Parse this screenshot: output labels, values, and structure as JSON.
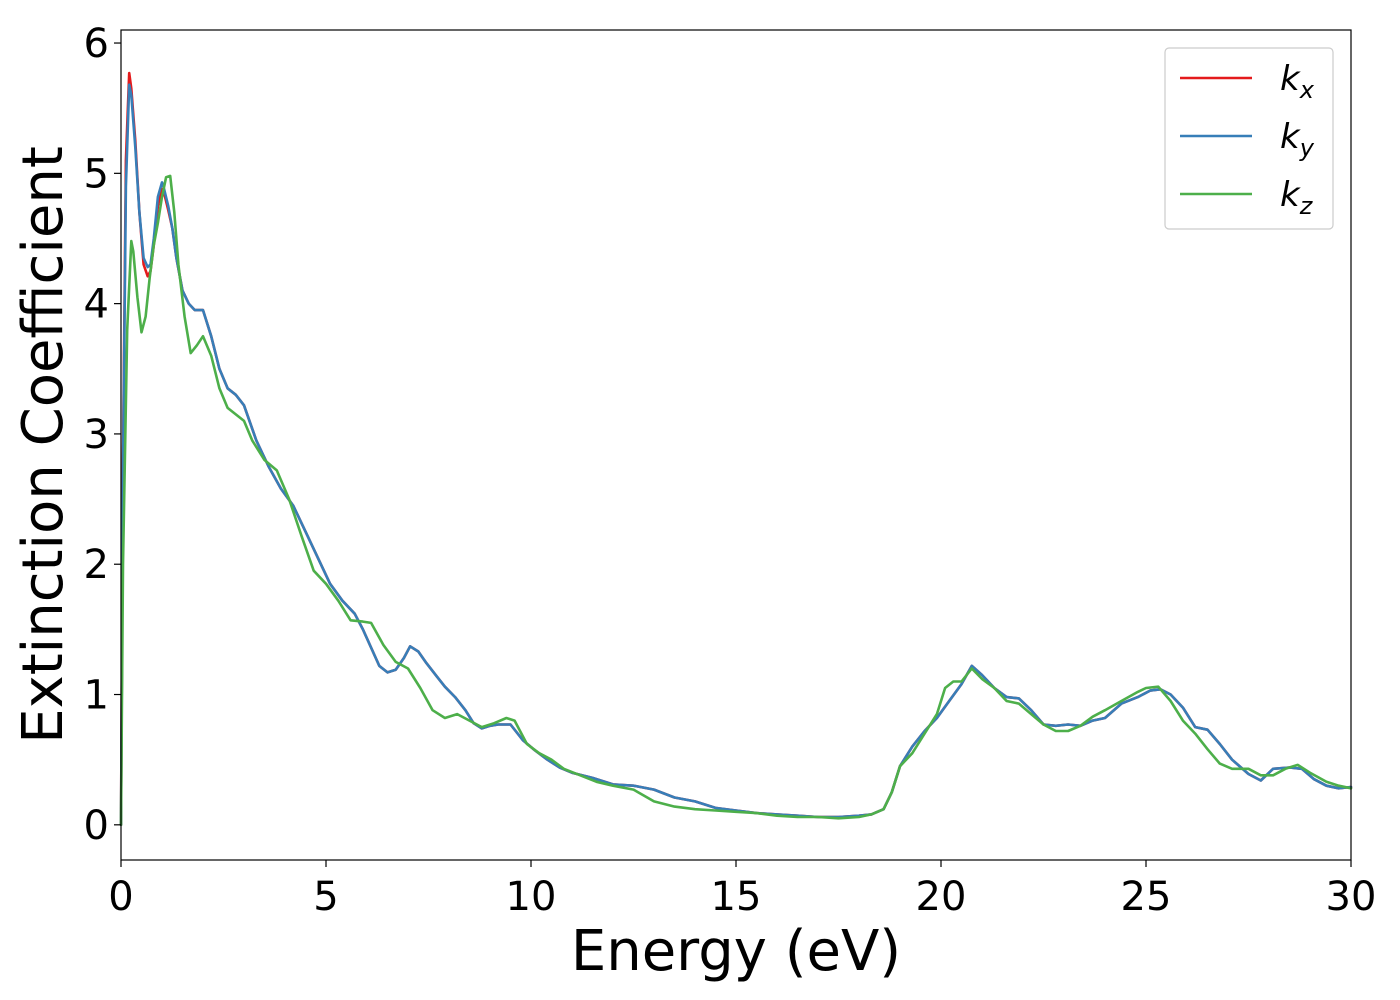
{
  "chart_data": {
    "type": "line",
    "title": "",
    "xlabel": "Energy (eV)",
    "ylabel": "Extinction Coefficient",
    "xlim": [
      0,
      30
    ],
    "ylim": [
      -0.27,
      6.1
    ],
    "xticks": [
      0,
      5,
      10,
      15,
      20,
      25,
      30
    ],
    "xtick_labels": [
      "0",
      "5",
      "10",
      "15",
      "20",
      "25",
      "30"
    ],
    "yticks": [
      0,
      1,
      2,
      3,
      4,
      5,
      6
    ],
    "ytick_labels": [
      "0",
      "1",
      "2",
      "3",
      "4",
      "5",
      "6"
    ],
    "grid": false,
    "legend_position": "top-right",
    "series": [
      {
        "name": "k",
        "subscript": "x",
        "color": "#e41a1c",
        "x": [
          0,
          0.05,
          0.12,
          0.2,
          0.25,
          0.35,
          0.45,
          0.55,
          0.65,
          0.72,
          0.8,
          0.9,
          1.0,
          1.05,
          1.15,
          1.25,
          1.35,
          1.5,
          1.65,
          1.8,
          2.0,
          2.2,
          2.4,
          2.6,
          2.8,
          3.0,
          3.3,
          3.6,
          3.9,
          4.2,
          4.5,
          4.8,
          5.1,
          5.4,
          5.7,
          5.9,
          6.1,
          6.3,
          6.5,
          6.7,
          6.9,
          7.05,
          7.25,
          7.45,
          7.7,
          7.9,
          8.15,
          8.4,
          8.6,
          8.8,
          9.0,
          9.2,
          9.5,
          9.8,
          10.1,
          10.4,
          10.7,
          11.0,
          11.5,
          12.0,
          12.5,
          13.0,
          13.5,
          14.0,
          14.5,
          15.0,
          15.5,
          16.0,
          16.5,
          17.0,
          17.5,
          18.0,
          18.3,
          18.6,
          18.8,
          19.0,
          19.3,
          19.6,
          19.9,
          20.2,
          20.5,
          20.75,
          21.0,
          21.3,
          21.6,
          21.9,
          22.2,
          22.5,
          22.8,
          23.1,
          23.4,
          23.7,
          24.0,
          24.4,
          24.8,
          25.1,
          25.35,
          25.6,
          25.9,
          26.2,
          26.5,
          26.8,
          27.1,
          27.5,
          27.8,
          28.1,
          28.5,
          28.8,
          29.1,
          29.4,
          29.7,
          30.0
        ],
        "values": [
          0,
          2.8,
          5.1,
          5.77,
          5.65,
          5.25,
          4.7,
          4.3,
          4.21,
          4.25,
          4.45,
          4.75,
          4.88,
          4.85,
          4.72,
          4.58,
          4.35,
          4.1,
          4.0,
          3.95,
          3.95,
          3.75,
          3.5,
          3.35,
          3.3,
          3.22,
          2.95,
          2.75,
          2.58,
          2.45,
          2.25,
          2.05,
          1.85,
          1.72,
          1.62,
          1.5,
          1.36,
          1.22,
          1.17,
          1.19,
          1.28,
          1.37,
          1.33,
          1.24,
          1.14,
          1.06,
          0.98,
          0.88,
          0.78,
          0.74,
          0.76,
          0.77,
          0.77,
          0.65,
          0.57,
          0.5,
          0.44,
          0.4,
          0.36,
          0.31,
          0.3,
          0.27,
          0.21,
          0.18,
          0.13,
          0.11,
          0.09,
          0.08,
          0.07,
          0.06,
          0.06,
          0.07,
          0.08,
          0.12,
          0.25,
          0.45,
          0.6,
          0.72,
          0.82,
          0.95,
          1.08,
          1.22,
          1.15,
          1.05,
          0.98,
          0.97,
          0.88,
          0.77,
          0.76,
          0.77,
          0.76,
          0.8,
          0.82,
          0.93,
          0.98,
          1.03,
          1.04,
          1.0,
          0.9,
          0.75,
          0.73,
          0.62,
          0.5,
          0.39,
          0.34,
          0.43,
          0.44,
          0.43,
          0.35,
          0.3,
          0.28,
          0.29
        ]
      },
      {
        "name": "k",
        "subscript": "y",
        "color": "#377eb8",
        "x": [
          0,
          0.05,
          0.12,
          0.2,
          0.25,
          0.35,
          0.45,
          0.55,
          0.65,
          0.72,
          0.8,
          0.9,
          1.0,
          1.05,
          1.15,
          1.25,
          1.35,
          1.5,
          1.65,
          1.8,
          2.0,
          2.2,
          2.4,
          2.6,
          2.8,
          3.0,
          3.3,
          3.6,
          3.9,
          4.2,
          4.5,
          4.8,
          5.1,
          5.4,
          5.7,
          5.9,
          6.1,
          6.3,
          6.5,
          6.7,
          6.9,
          7.05,
          7.25,
          7.45,
          7.7,
          7.9,
          8.15,
          8.4,
          8.6,
          8.8,
          9.0,
          9.2,
          9.5,
          9.8,
          10.1,
          10.4,
          10.7,
          11.0,
          11.5,
          12.0,
          12.5,
          13.0,
          13.5,
          14.0,
          14.5,
          15.0,
          15.5,
          16.0,
          16.5,
          17.0,
          17.5,
          18.0,
          18.3,
          18.6,
          18.8,
          19.0,
          19.3,
          19.6,
          19.9,
          20.2,
          20.5,
          20.75,
          21.0,
          21.3,
          21.6,
          21.9,
          22.2,
          22.5,
          22.8,
          23.1,
          23.4,
          23.7,
          24.0,
          24.4,
          24.8,
          25.1,
          25.35,
          25.6,
          25.9,
          26.2,
          26.5,
          26.8,
          27.1,
          27.5,
          27.8,
          28.1,
          28.5,
          28.8,
          29.1,
          29.4,
          29.7,
          30.0
        ],
        "values": [
          0,
          2.7,
          4.9,
          5.68,
          5.6,
          5.2,
          4.7,
          4.35,
          4.28,
          4.3,
          4.5,
          4.82,
          4.93,
          4.88,
          4.75,
          4.58,
          4.35,
          4.1,
          4.0,
          3.95,
          3.95,
          3.75,
          3.5,
          3.35,
          3.3,
          3.22,
          2.95,
          2.75,
          2.58,
          2.45,
          2.25,
          2.05,
          1.85,
          1.72,
          1.62,
          1.5,
          1.36,
          1.22,
          1.17,
          1.19,
          1.28,
          1.37,
          1.33,
          1.24,
          1.14,
          1.06,
          0.98,
          0.88,
          0.78,
          0.74,
          0.76,
          0.77,
          0.77,
          0.65,
          0.57,
          0.5,
          0.44,
          0.4,
          0.36,
          0.31,
          0.3,
          0.27,
          0.21,
          0.18,
          0.13,
          0.11,
          0.09,
          0.08,
          0.07,
          0.06,
          0.06,
          0.07,
          0.08,
          0.12,
          0.25,
          0.45,
          0.6,
          0.72,
          0.82,
          0.95,
          1.08,
          1.22,
          1.15,
          1.05,
          0.98,
          0.97,
          0.88,
          0.77,
          0.76,
          0.77,
          0.76,
          0.8,
          0.82,
          0.93,
          0.98,
          1.03,
          1.04,
          1.0,
          0.9,
          0.75,
          0.73,
          0.62,
          0.5,
          0.39,
          0.34,
          0.43,
          0.44,
          0.43,
          0.35,
          0.3,
          0.28,
          0.29
        ]
      },
      {
        "name": "k",
        "subscript": "z",
        "color": "#4daf4a",
        "x": [
          0,
          0.05,
          0.15,
          0.25,
          0.3,
          0.4,
          0.5,
          0.6,
          0.7,
          0.8,
          0.9,
          1.0,
          1.1,
          1.2,
          1.3,
          1.4,
          1.55,
          1.7,
          1.85,
          2.0,
          2.2,
          2.4,
          2.6,
          2.8,
          3.0,
          3.2,
          3.5,
          3.8,
          4.1,
          4.4,
          4.7,
          5.0,
          5.3,
          5.6,
          5.9,
          6.1,
          6.4,
          6.7,
          7.0,
          7.3,
          7.6,
          7.9,
          8.2,
          8.5,
          8.8,
          9.1,
          9.4,
          9.6,
          9.9,
          10.2,
          10.5,
          10.8,
          11.2,
          11.6,
          12.0,
          12.5,
          13.0,
          13.5,
          14.0,
          14.5,
          15.0,
          15.5,
          16.0,
          16.5,
          17.0,
          17.5,
          18.0,
          18.3,
          18.6,
          18.8,
          19.0,
          19.3,
          19.6,
          19.9,
          20.1,
          20.3,
          20.5,
          20.75,
          21.0,
          21.3,
          21.6,
          21.9,
          22.2,
          22.5,
          22.8,
          23.1,
          23.4,
          23.7,
          24.0,
          24.4,
          24.8,
          25.0,
          25.3,
          25.6,
          25.9,
          26.2,
          26.5,
          26.8,
          27.1,
          27.5,
          27.8,
          28.1,
          28.4,
          28.7,
          29.0,
          29.4,
          29.7,
          30.0
        ],
        "values": [
          0,
          2.0,
          3.8,
          4.48,
          4.4,
          4.05,
          3.78,
          3.9,
          4.2,
          4.45,
          4.62,
          4.82,
          4.97,
          4.98,
          4.7,
          4.3,
          3.9,
          3.62,
          3.68,
          3.75,
          3.6,
          3.35,
          3.2,
          3.15,
          3.1,
          2.95,
          2.8,
          2.72,
          2.5,
          2.22,
          1.95,
          1.85,
          1.72,
          1.57,
          1.56,
          1.55,
          1.38,
          1.25,
          1.2,
          1.05,
          0.88,
          0.82,
          0.85,
          0.8,
          0.75,
          0.78,
          0.82,
          0.8,
          0.62,
          0.55,
          0.5,
          0.43,
          0.38,
          0.33,
          0.3,
          0.27,
          0.18,
          0.14,
          0.12,
          0.11,
          0.1,
          0.09,
          0.07,
          0.06,
          0.06,
          0.05,
          0.06,
          0.08,
          0.12,
          0.25,
          0.45,
          0.55,
          0.7,
          0.85,
          1.05,
          1.1,
          1.1,
          1.2,
          1.12,
          1.05,
          0.95,
          0.93,
          0.85,
          0.77,
          0.72,
          0.72,
          0.76,
          0.83,
          0.88,
          0.95,
          1.02,
          1.05,
          1.06,
          0.95,
          0.8,
          0.7,
          0.58,
          0.47,
          0.43,
          0.43,
          0.38,
          0.38,
          0.43,
          0.46,
          0.4,
          0.33,
          0.3,
          0.28
        ]
      }
    ]
  }
}
